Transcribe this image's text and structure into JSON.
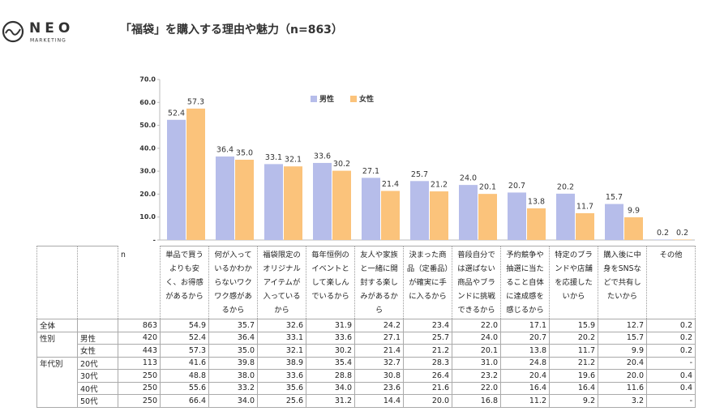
{
  "logo": {
    "name": "NEO",
    "sub": "MARKETING"
  },
  "chart_data": {
    "type": "bar",
    "title": "「福袋」を購入する理由や魅力（n=863）",
    "categories": [
      "単品で買うよりも安く、お得感があるから",
      "何が入っているかわからないワクワク感があるから",
      "福袋限定のオリジナルアイテムが入っているから",
      "毎年恒例のイベントとして楽しんでいるから",
      "友人や家族と一緒に開封する楽しみがあるから",
      "決まった商品（定番品）が確実に手に入るから",
      "普段自分では選ばない商品やブランドに挑戦できるから",
      "予約競争や抽選に当たること自体に達成感を感じるから",
      "特定のブランドや店舗を応援したいから",
      "購入後に中身をSNSなどで共有したいから",
      "その他"
    ],
    "series": [
      {
        "name": "男性",
        "color": "#b6bdea",
        "values": [
          52.4,
          36.4,
          33.1,
          33.6,
          27.1,
          25.7,
          24.0,
          20.7,
          20.2,
          15.7,
          0.2
        ],
        "value_labels": [
          "52.4",
          "36.4",
          "33.1",
          "33.6",
          "27.1",
          "25.7",
          "24.0",
          "20.7",
          "20.2",
          "15.7",
          "0.2"
        ]
      },
      {
        "name": "女性",
        "color": "#fbc37b",
        "values": [
          57.3,
          35.0,
          32.1,
          30.2,
          21.4,
          21.2,
          20.1,
          13.8,
          11.7,
          9.9,
          0.2
        ],
        "value_labels": [
          "57.3",
          "35.0",
          "32.1",
          "30.2",
          "21.4",
          "21.2",
          "20.1",
          "13.8",
          "11.7",
          "9.9",
          "0.2"
        ]
      }
    ],
    "ylim": [
      0,
      70
    ],
    "yticks": [
      {
        "value": 0,
        "label": "-"
      },
      {
        "value": 10,
        "label": "10.0"
      },
      {
        "value": 20,
        "label": "20.0"
      },
      {
        "value": 30,
        "label": "30.0"
      },
      {
        "value": 40,
        "label": "40.0"
      },
      {
        "value": 50,
        "label": "50.0"
      },
      {
        "value": 60,
        "label": "60.0"
      },
      {
        "value": 70,
        "label": "70.0"
      }
    ],
    "legend": "top"
  },
  "table": {
    "n_header": "n",
    "rows": [
      {
        "group": "全体",
        "n": "863",
        "cells": [
          "54.9",
          "35.7",
          "32.6",
          "31.9",
          "24.2",
          "23.4",
          "22.0",
          "17.1",
          "15.9",
          "12.7",
          "0.2"
        ]
      },
      {
        "group": "性別",
        "label": "男性",
        "n": "420",
        "cells": [
          "52.4",
          "36.4",
          "33.1",
          "33.6",
          "27.1",
          "25.7",
          "24.0",
          "20.7",
          "20.2",
          "15.7",
          "0.2"
        ]
      },
      {
        "label": "女性",
        "n": "443",
        "cells": [
          "57.3",
          "35.0",
          "32.1",
          "30.2",
          "21.4",
          "21.2",
          "20.1",
          "13.8",
          "11.7",
          "9.9",
          "0.2"
        ]
      },
      {
        "group": "年代別",
        "label": "20代",
        "n": "113",
        "cells": [
          "41.6",
          "39.8",
          "38.9",
          "35.4",
          "32.7",
          "28.3",
          "31.0",
          "24.8",
          "21.2",
          "20.4",
          "-"
        ]
      },
      {
        "label": "30代",
        "n": "250",
        "cells": [
          "48.8",
          "38.0",
          "33.6",
          "28.8",
          "30.8",
          "26.4",
          "23.2",
          "20.4",
          "19.6",
          "20.0",
          "0.4"
        ]
      },
      {
        "label": "40代",
        "n": "250",
        "cells": [
          "55.6",
          "33.2",
          "35.6",
          "34.0",
          "23.6",
          "21.6",
          "22.0",
          "16.4",
          "16.4",
          "11.6",
          "0.4"
        ]
      },
      {
        "label": "50代",
        "n": "250",
        "cells": [
          "66.4",
          "34.0",
          "25.6",
          "31.2",
          "14.4",
          "20.0",
          "16.8",
          "11.2",
          "9.2",
          "3.2",
          "-"
        ]
      }
    ]
  }
}
